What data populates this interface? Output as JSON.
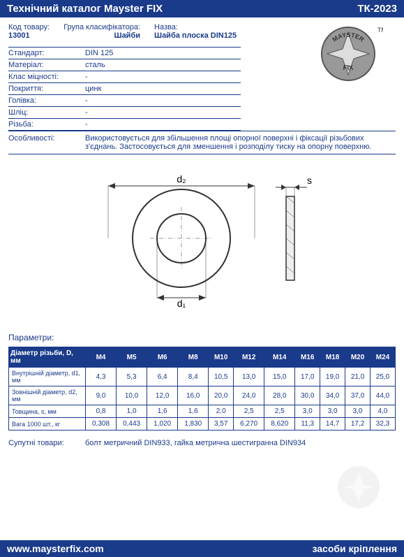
{
  "header": {
    "title": "Технічний каталог Mayster FIX",
    "code": "ТК-2023"
  },
  "top": {
    "code_label": "Код товару:",
    "code_value": "13001",
    "group_label": "Група класифікатора:",
    "group_value": "Шайби",
    "name_label": "Назва:",
    "name_value": "Шайба плоска DIN125"
  },
  "specs": [
    {
      "label": "Стандарт:",
      "value": "DIN 125"
    },
    {
      "label": "Матеріал:",
      "value": "сталь"
    },
    {
      "label": "Клас міцності:",
      "value": "-"
    },
    {
      "label": "Покриття:",
      "value": "цинк"
    },
    {
      "label": "Голівка:",
      "value": "-"
    },
    {
      "label": "Шліц:",
      "value": "-"
    },
    {
      "label": "Різьба:",
      "value": "-"
    }
  ],
  "feature_label": "Особливості:",
  "feature_text": "Використовується для збільшення площі опорної поверхні і фіксації різьбових з'єднань. Застосовується для зменшення і розподілу тиску на опорну поверхню.",
  "diagram": {
    "d1_label": "d₁",
    "d2_label": "d₂",
    "s_label": "s",
    "outer_r": 70,
    "inner_r": 35,
    "stroke": "#333",
    "fill": "#fff"
  },
  "params_heading": "Параметри:",
  "params": {
    "header_label": "Діаметр різьби, D, мм",
    "sizes": [
      "M4",
      "M5",
      "M6",
      "M8",
      "M10",
      "M12",
      "M14",
      "M16",
      "M18",
      "M20",
      "M24"
    ],
    "rows": [
      {
        "label": "Внутрішній діаметр, d1, мм",
        "values": [
          "4,3",
          "5,3",
          "6,4",
          "8,4",
          "10,5",
          "13,0",
          "15,0",
          "17,0",
          "19,0",
          "21,0",
          "25,0"
        ]
      },
      {
        "label": "Зовнішній діаметр, d2, мм",
        "values": [
          "9,0",
          "10,0",
          "12,0",
          "16,0",
          "20,0",
          "24,0",
          "28,0",
          "30,0",
          "34,0",
          "37,0",
          "44,0"
        ]
      },
      {
        "label": "Товщина, s, мм",
        "values": [
          "0,8",
          "1,0",
          "1,6",
          "1,6",
          "2,0",
          "2,5",
          "2,5",
          "3,0",
          "3,0",
          "3,0",
          "4,0"
        ]
      },
      {
        "label": "Вага 1000 шт., кг",
        "values": [
          "0,308",
          "0,443",
          "1,020",
          "1,830",
          "3,57",
          "6,270",
          "8,620",
          "11,3",
          "14,7",
          "17,2",
          "32,3"
        ]
      }
    ]
  },
  "related_label": "Супутні товари:",
  "related_text": "болт метричний DIN933, гайка метрична шестигранна DIN934",
  "footer": {
    "url": "www.maysterfix.com",
    "slogan": "засоби кріплення"
  },
  "logo": {
    "text_top": "MAYSTER",
    "text_bottom": "FIX",
    "tm": "TM"
  }
}
